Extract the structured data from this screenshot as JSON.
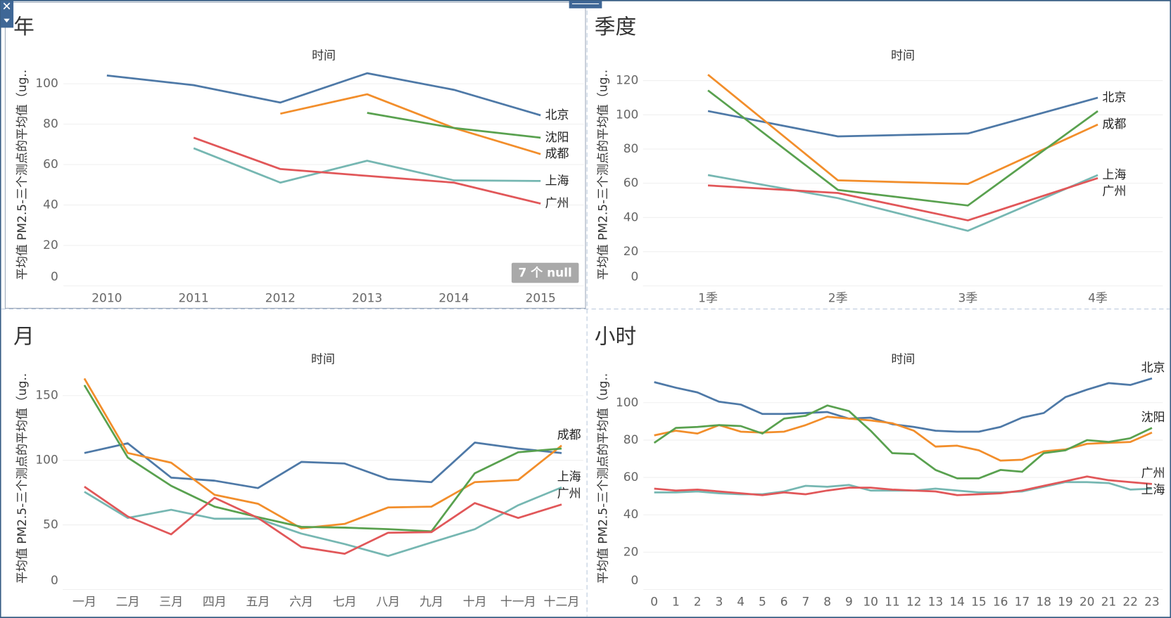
{
  "chart_data": [
    {
      "type": "line",
      "title": "年",
      "x_label": "时间",
      "y_label": "平均值 PM2.5-三个测点的平均值（ug..",
      "annotation": "7 个 null",
      "grid": true,
      "categories": [
        "2010",
        "2011",
        "2012",
        "2013",
        "2014",
        "2015"
      ],
      "ylim": [
        0,
        110
      ],
      "yticks": [
        0,
        20,
        40,
        60,
        80,
        100
      ],
      "series": [
        {
          "name": "北京",
          "color": "#4e79a7",
          "values": [
            104.1,
            99.3,
            90.7,
            105.2,
            97,
            84.4
          ]
        },
        {
          "name": "成都",
          "color": "#f28e2b",
          "values": [
            null,
            null,
            85.2,
            94.8,
            78.1,
            65.2
          ]
        },
        {
          "name": "沈阳",
          "color": "#59a14f",
          "values": [
            null,
            null,
            null,
            85.6,
            78.1,
            73.3
          ]
        },
        {
          "name": "上海",
          "color": "#76b7b2",
          "values": [
            null,
            68.1,
            51.1,
            61.9,
            52.2,
            51.9
          ]
        },
        {
          "name": "广州",
          "color": "#e15759",
          "values": [
            null,
            73.3,
            57.8,
            54.4,
            51.1,
            40.7
          ]
        }
      ]
    },
    {
      "type": "line",
      "title": "季度",
      "x_label": "时间",
      "y_label": "平均值 PM2.5-三个测点的平均值（ug..",
      "grid": true,
      "categories": [
        "1季",
        "2季",
        "3季",
        "4季"
      ],
      "ylim": [
        0,
        130
      ],
      "yticks": [
        0,
        20,
        40,
        60,
        80,
        100,
        120
      ],
      "series": [
        {
          "name": "北京",
          "color": "#4e79a7",
          "values": [
            102.2,
            87.4,
            89.1,
            110
          ]
        },
        {
          "name": "成都",
          "color": "#f28e2b",
          "values": [
            123.5,
            61.7,
            59.6,
            94.3
          ]
        },
        {
          "name": "沈阳",
          "color": "#59a14f",
          "end_label": false,
          "values": [
            114.3,
            56.1,
            47,
            102.2
          ]
        },
        {
          "name": "上海",
          "color": "#76b7b2",
          "values": [
            64.8,
            51.3,
            32.2,
            64.8
          ]
        },
        {
          "name": "广州",
          "color": "#e15759",
          "values": [
            58.7,
            54.3,
            38.3,
            63
          ]
        }
      ]
    },
    {
      "type": "line",
      "title": "月",
      "x_label": "时间",
      "y_label": "平均值 PM2.5-三个测点的平均值（ug..",
      "grid": true,
      "categories": [
        "一月",
        "二月",
        "三月",
        "四月",
        "五月",
        "六月",
        "七月",
        "八月",
        "九月",
        "十月",
        "十一月",
        "十二月"
      ],
      "ylim": [
        0,
        172
      ],
      "yticks": [
        0,
        50,
        100,
        150
      ],
      "series": [
        {
          "name": "北京",
          "color": "#4e79a7",
          "end_label": false,
          "values": [
            105.6,
            113.1,
            86.6,
            84.2,
            78.5,
            98.7,
            97.5,
            85.4,
            83.1,
            113.7,
            109.1,
            105.6
          ]
        },
        {
          "name": "成都",
          "color": "#f28e2b",
          "values": [
            163.3,
            105.6,
            98.1,
            73.3,
            66.4,
            47.3,
            50.8,
            63.5,
            64.1,
            83.1,
            84.8,
            111.4
          ]
        },
        {
          "name": "沈阳",
          "color": "#59a14f",
          "end_label": false,
          "values": [
            158.1,
            102.1,
            80.2,
            64.1,
            56,
            48.5,
            47.9,
            46.7,
            45,
            90,
            106.2,
            109.1
          ]
        },
        {
          "name": "上海",
          "color": "#76b7b2",
          "values": [
            75.6,
            55.4,
            61.7,
            54.8,
            54.8,
            43.3,
            35.2,
            26,
            36.4,
            46.7,
            65.2,
            79
          ]
        },
        {
          "name": "广州",
          "color": "#e15759",
          "values": [
            79.6,
            56.5,
            42.7,
            71,
            55.4,
            32.9,
            27.7,
            43.9,
            44.4,
            66.9,
            55.4,
            65.8
          ]
        }
      ]
    },
    {
      "type": "line",
      "title": "小时",
      "x_label": "时间",
      "y_label": "平均值 PM2.5-三个测点的平均值（ug..",
      "grid": true,
      "categories": [
        "0",
        "1",
        "2",
        "3",
        "4",
        "5",
        "6",
        "7",
        "8",
        "9",
        "10",
        "11",
        "12",
        "13",
        "14",
        "15",
        "16",
        "17",
        "18",
        "19",
        "20",
        "21",
        "22",
        "23"
      ],
      "ylim": [
        0,
        119
      ],
      "yticks": [
        0,
        20,
        40,
        60,
        80,
        100
      ],
      "series": [
        {
          "name": "北京",
          "color": "#4e79a7",
          "values": [
            111,
            108,
            105.5,
            100.5,
            99,
            94,
            94,
            94.5,
            95,
            91.5,
            92,
            88.5,
            87,
            85,
            84.5,
            84.5,
            87,
            92,
            94.5,
            103,
            107,
            110.5,
            109.5,
            113
          ]
        },
        {
          "name": "成都",
          "color": "#f28e2b",
          "end_label": false,
          "values": [
            82.5,
            85,
            83.5,
            88,
            84.5,
            84,
            84.5,
            88,
            92.5,
            91.5,
            90.5,
            89,
            85,
            76.5,
            77,
            74.5,
            69,
            69.5,
            74,
            75,
            78,
            78.5,
            79,
            84
          ]
        },
        {
          "name": "沈阳",
          "color": "#59a14f",
          "values": [
            78.5,
            86.5,
            87,
            88,
            87.5,
            83.5,
            91.5,
            93,
            98.5,
            95.5,
            85,
            73,
            72.5,
            64,
            59.5,
            59.5,
            64,
            63,
            73,
            74.5,
            80,
            79,
            81,
            86.5
          ]
        },
        {
          "name": "上海",
          "color": "#76b7b2",
          "values": [
            52,
            52,
            52.5,
            51.5,
            51,
            51,
            52.5,
            55.5,
            55,
            56,
            53,
            53,
            53,
            54,
            53,
            52,
            52,
            52.5,
            55,
            57.5,
            57.5,
            57,
            53.5,
            54
          ]
        },
        {
          "name": "广州",
          "color": "#e15759",
          "values": [
            54,
            53,
            53.5,
            52.5,
            51.5,
            50.5,
            52,
            51,
            53,
            54.5,
            54.5,
            53.5,
            53,
            52.5,
            50.5,
            51,
            51.5,
            53,
            55.5,
            58,
            60.5,
            58.5,
            57.5,
            56.5
          ]
        }
      ]
    }
  ]
}
